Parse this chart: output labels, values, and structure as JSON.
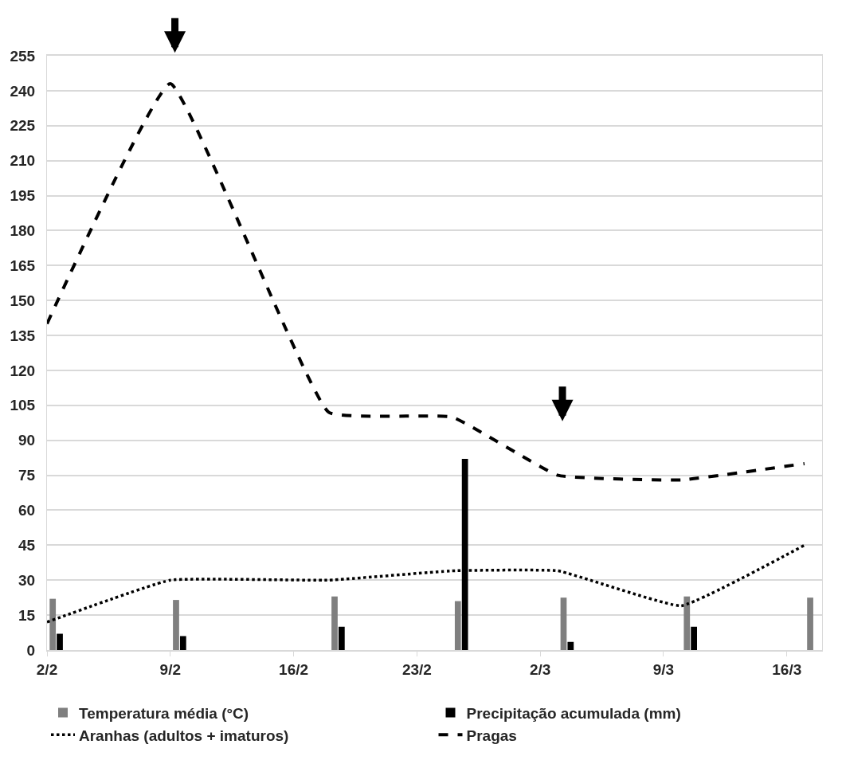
{
  "chart_data": {
    "type": "bar",
    "x": [
      "--02-02",
      "--02-09",
      "--02-18",
      "--02-25",
      "--03-03",
      "--03-10",
      "--03-17"
    ],
    "series": [
      {
        "name": "Temperatura média (°C)",
        "color": "#7f7f7f",
        "values": [
          22,
          21.5,
          23,
          21,
          22.5,
          23,
          22.5
        ]
      },
      {
        "name": "Precipitação acumulada (mm)",
        "color": "#000000",
        "values": [
          7,
          6,
          10,
          82,
          3.5,
          10,
          null
        ]
      },
      {
        "name": "Aranhas (adultos + imaturos)",
        "type": "line",
        "color": "#000000",
        "line_style": "dotted",
        "values": [
          12,
          30,
          30,
          34,
          34,
          19,
          45
        ]
      },
      {
        "name": "Pragas",
        "type": "line",
        "color": "#000000",
        "line_style": "dashed",
        "values": [
          140,
          243,
          102,
          100,
          75,
          73,
          80
        ]
      }
    ],
    "xlim": [
      "--02-02",
      "--03-18"
    ],
    "xticks": [
      {
        "value": "--02-02",
        "label": "2/2"
      },
      {
        "value": "--02-09",
        "label": "9/2"
      },
      {
        "value": "--02-16",
        "label": "16/2"
      },
      {
        "value": "--02-23",
        "label": "23/2"
      },
      {
        "value": "--03-02",
        "label": "2/3"
      },
      {
        "value": "--03-09",
        "label": "9/3"
      },
      {
        "value": "--03-16",
        "label": "16/3"
      }
    ],
    "ylim": [
      0,
      255
    ],
    "yticks": [
      0,
      15,
      30,
      45,
      60,
      75,
      90,
      105,
      120,
      135,
      150,
      165,
      180,
      195,
      210,
      225,
      240,
      255
    ],
    "grid": "y",
    "legend": "bottom"
  }
}
